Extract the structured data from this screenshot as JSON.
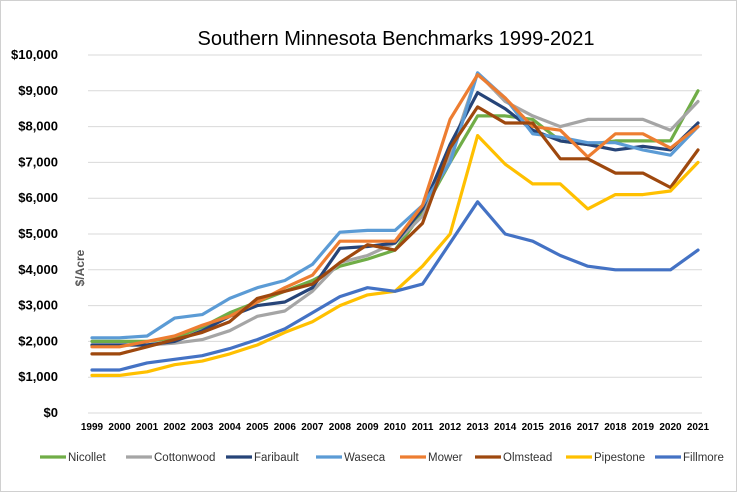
{
  "chart_data": {
    "type": "line",
    "title": "Southern Minnesota Benchmarks 1999-2021",
    "ylabel": "$/Acre",
    "xlabel": "",
    "ylim": [
      0,
      10000
    ],
    "y_ticks": [
      "$0",
      "$1,000",
      "$2,000",
      "$3,000",
      "$4,000",
      "$5,000",
      "$6,000",
      "$7,000",
      "$8,000",
      "$9,000",
      "$10,000"
    ],
    "y_tick_values": [
      0,
      1000,
      2000,
      3000,
      4000,
      5000,
      6000,
      7000,
      8000,
      9000,
      10000
    ],
    "categories": [
      "1999",
      "2000",
      "2001",
      "2002",
      "2003",
      "2004",
      "2005",
      "2006",
      "2007",
      "2008",
      "2009",
      "2010",
      "2011",
      "2012",
      "2013",
      "2014",
      "2015",
      "2016",
      "2017",
      "2018",
      "2019",
      "2020",
      "2021"
    ],
    "grid": true,
    "legend_position": "bottom",
    "series": [
      {
        "name": "Nicollet",
        "color": "#70ad47",
        "values": [
          2000,
          2000,
          2000,
          2100,
          2400,
          2800,
          3100,
          3400,
          3700,
          4100,
          4300,
          4550,
          5600,
          7000,
          8300,
          8300,
          8200,
          7600,
          7500,
          7600,
          7600,
          7600,
          9000
        ]
      },
      {
        "name": "Cottonwood",
        "color": "#a5a5a5",
        "values": [
          1900,
          1900,
          1900,
          1950,
          2050,
          2300,
          2700,
          2850,
          3400,
          4200,
          4400,
          4750,
          5500,
          7200,
          9500,
          8700,
          8300,
          8000,
          8200,
          8200,
          8200,
          7900,
          8700
        ]
      },
      {
        "name": "Faribault",
        "color": "#264478",
        "values": [
          1900,
          1900,
          1900,
          2000,
          2300,
          2700,
          3000,
          3100,
          3500,
          4600,
          4650,
          4750,
          5700,
          7500,
          8950,
          8500,
          7900,
          7600,
          7500,
          7350,
          7450,
          7350,
          8100
        ]
      },
      {
        "name": "Waseca",
        "color": "#5b9bd5",
        "values": [
          2100,
          2100,
          2150,
          2650,
          2750,
          3200,
          3500,
          3700,
          4150,
          5050,
          5100,
          5100,
          5800,
          7000,
          9500,
          8800,
          7800,
          7700,
          7550,
          7550,
          7350,
          7200,
          8000
        ]
      },
      {
        "name": "Mower",
        "color": "#ed7d31",
        "values": [
          1850,
          1850,
          2000,
          2150,
          2450,
          2700,
          3100,
          3500,
          3850,
          4800,
          4800,
          4800,
          5800,
          8200,
          9450,
          8800,
          8000,
          7900,
          7150,
          7800,
          7800,
          7400,
          8000
        ]
      },
      {
        "name": "Olmstead",
        "color": "#9e480e",
        "values": [
          1650,
          1650,
          1850,
          2050,
          2250,
          2550,
          3200,
          3400,
          3600,
          4200,
          4700,
          4550,
          5300,
          7400,
          8550,
          8100,
          8100,
          7100,
          7100,
          6700,
          6700,
          6300,
          7350
        ]
      },
      {
        "name": "Pipestone",
        "color": "#ffc000",
        "values": [
          1050,
          1050,
          1150,
          1350,
          1450,
          1650,
          1900,
          2250,
          2550,
          3000,
          3300,
          3400,
          4100,
          5000,
          7750,
          6950,
          6400,
          6400,
          5700,
          6100,
          6100,
          6200,
          7000
        ]
      },
      {
        "name": "Fillmore",
        "color": "#4472c4",
        "values": [
          1200,
          1200,
          1400,
          1500,
          1600,
          1800,
          2050,
          2350,
          2800,
          3250,
          3500,
          3400,
          3600,
          4750,
          5900,
          5000,
          4800,
          4400,
          4100,
          4000,
          4000,
          4000,
          4550
        ]
      }
    ]
  }
}
